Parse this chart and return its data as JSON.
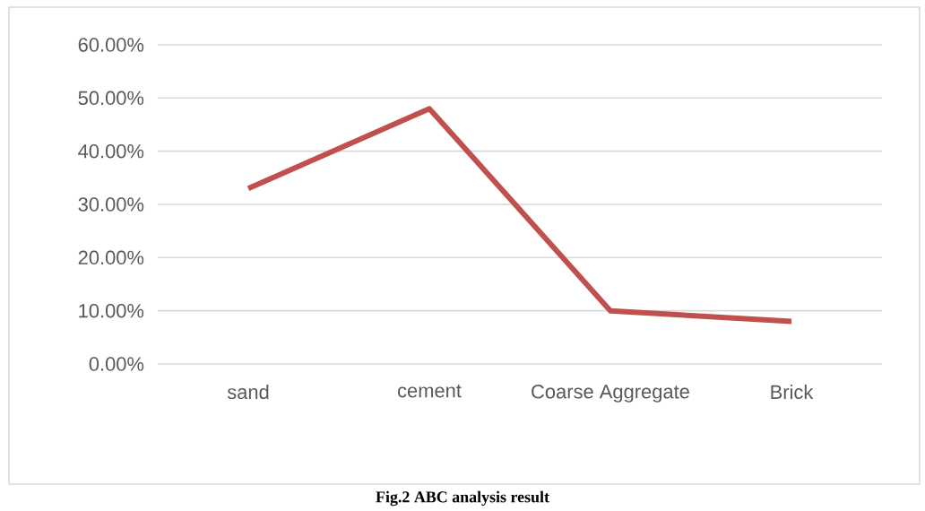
{
  "chart_data": {
    "type": "line",
    "categories": [
      "sand",
      "cement",
      "Coarse Aggregate",
      "Brick"
    ],
    "values": [
      33,
      48,
      10,
      8
    ],
    "color": "#c0504d",
    "ylim": [
      0,
      60
    ],
    "yticks": [
      {
        "value": 0,
        "label": "0.00%"
      },
      {
        "value": 10,
        "label": "10.00%"
      },
      {
        "value": 20,
        "label": "20.00%"
      },
      {
        "value": 30,
        "label": "30.00%"
      },
      {
        "value": 40,
        "label": "40.00%"
      },
      {
        "value": 50,
        "label": "50.00%"
      },
      {
        "value": 60,
        "label": "60.00%"
      }
    ],
    "grid": "y",
    "annotations": [
      "Fig.2 ABC analysis result"
    ]
  }
}
